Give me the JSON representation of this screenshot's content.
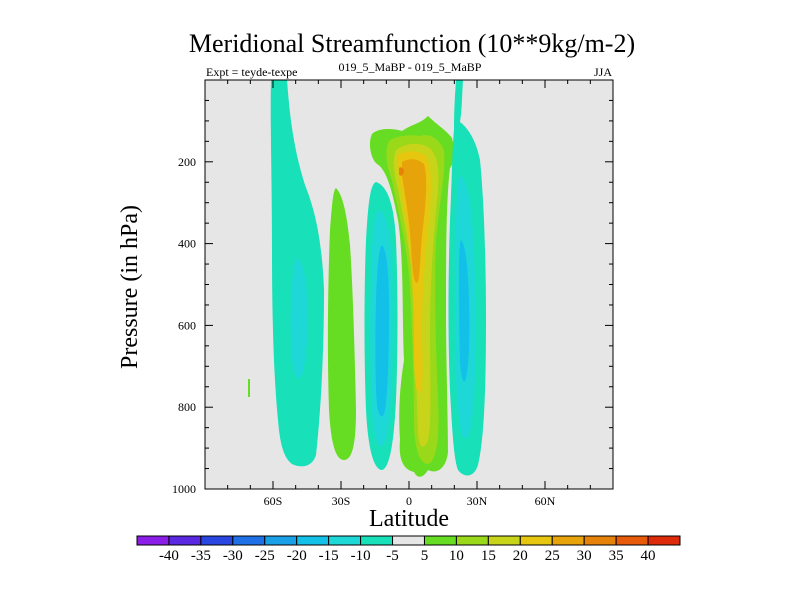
{
  "chart_data": {
    "type": "contour",
    "title": "Meridional Streamfunction (10**9kg/m-2)",
    "subtitle_left": "Expt = teyde-texpe",
    "subtitle_center": "019_5_MaBP - 019_5_MaBP",
    "subtitle_right": "JJA",
    "xlabel": "Latitude",
    "ylabel": "Pressure (in hPa)",
    "xlim": [
      -90,
      90
    ],
    "ylim": [
      1000,
      0
    ],
    "x_ticks": [
      {
        "value": -60,
        "label": "60S"
      },
      {
        "value": -30,
        "label": "30S"
      },
      {
        "value": 0,
        "label": "0"
      },
      {
        "value": 30,
        "label": "30N"
      },
      {
        "value": 60,
        "label": "60N"
      }
    ],
    "y_ticks": [
      200,
      400,
      600,
      800,
      1000
    ],
    "background_level": "-5 to 5",
    "contour_levels": [
      -40,
      -35,
      -30,
      -25,
      -20,
      -15,
      -10,
      -5,
      5,
      10,
      15,
      20,
      25,
      30,
      35,
      40
    ],
    "colorbar": {
      "labels": [
        "-40",
        "-35",
        "-30",
        "-25",
        "-20",
        "-15",
        "-10",
        "-5",
        "5",
        "10",
        "15",
        "20",
        "25",
        "30",
        "35",
        "40"
      ],
      "colors": [
        "#8a1ee6",
        "#5a28e0",
        "#2a46e0",
        "#1f6fe6",
        "#1aa0e6",
        "#12c0e8",
        "#1ed8d8",
        "#18e0b8",
        "#e6e6e6",
        "#66dd22",
        "#9ad81a",
        "#c8d41a",
        "#e6c60e",
        "#e6a40a",
        "#e6820a",
        "#e65a0a",
        "#dc2a0a"
      ]
    },
    "cells": [
      {
        "name": "southern-midlatitude-negative-cell",
        "lat_center": -52,
        "min_p": 0,
        "max_p": 940,
        "levels": [
          -10,
          -15
        ]
      },
      {
        "name": "southern-subtropical-positive-cell",
        "lat_center": -27,
        "min_p": 270,
        "max_p": 900,
        "levels": [
          5
        ]
      },
      {
        "name": "southern-tropical-negative-cell",
        "lat_center": -10,
        "min_p": 250,
        "max_p": 940,
        "levels": [
          -10,
          -15,
          -20
        ]
      },
      {
        "name": "hadley-positive-cell",
        "lat_center": 5,
        "min_p": 120,
        "max_p": 970,
        "levels": [
          5,
          10,
          15,
          20,
          25,
          30
        ]
      },
      {
        "name": "northern-tropical-negative-cell",
        "lat_center": 21,
        "min_p": 0,
        "max_p": 960,
        "levels": [
          -10,
          -15,
          -20
        ]
      }
    ]
  }
}
